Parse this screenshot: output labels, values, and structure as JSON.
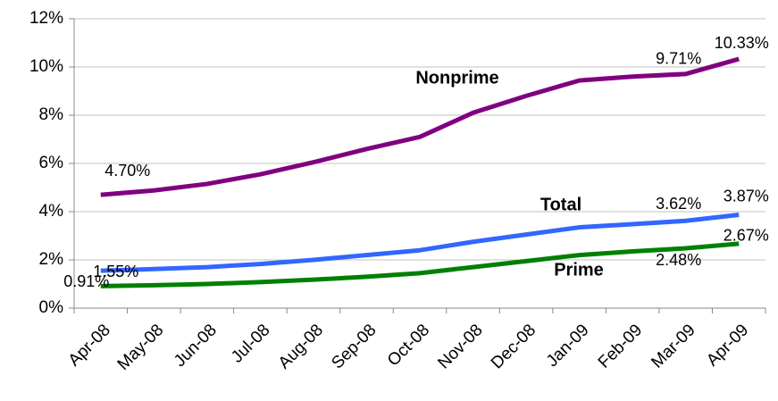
{
  "chart_data": {
    "type": "line",
    "categories": [
      "Apr-08",
      "May-08",
      "Jun-08",
      "Jul-08",
      "Aug-08",
      "Sep-08",
      "Oct-08",
      "Nov-08",
      "Dec-08",
      "Jan-09",
      "Feb-09",
      "Mar-09",
      "Apr-09"
    ],
    "series": [
      {
        "name": "Nonprime",
        "color": "#800080",
        "values": [
          4.7,
          4.88,
          5.15,
          5.55,
          6.05,
          6.6,
          7.1,
          8.1,
          8.8,
          9.44,
          9.6,
          9.71,
          10.33
        ],
        "value_labels": [
          "4.70%",
          null,
          null,
          null,
          null,
          null,
          null,
          null,
          null,
          null,
          null,
          "9.71%",
          "10.33%"
        ]
      },
      {
        "name": "Total",
        "color": "#3366ff",
        "values": [
          1.55,
          1.62,
          1.7,
          1.83,
          2.0,
          2.2,
          2.4,
          2.75,
          3.05,
          3.35,
          3.48,
          3.62,
          3.87
        ],
        "value_labels": [
          "1.55%",
          null,
          null,
          null,
          null,
          null,
          null,
          null,
          null,
          null,
          null,
          "3.62%",
          "3.87%"
        ]
      },
      {
        "name": "Prime",
        "color": "#008000",
        "values": [
          0.91,
          0.95,
          1.0,
          1.08,
          1.18,
          1.3,
          1.45,
          1.7,
          1.95,
          2.2,
          2.35,
          2.48,
          2.67
        ],
        "value_labels": [
          "0.91%",
          null,
          null,
          null,
          null,
          null,
          null,
          null,
          null,
          null,
          null,
          "2.48%",
          "2.67%"
        ]
      }
    ],
    "ylim": [
      0,
      12
    ],
    "yticks": [
      {
        "value": 0,
        "label": "0%"
      },
      {
        "value": 2,
        "label": "2%"
      },
      {
        "value": 4,
        "label": "4%"
      },
      {
        "value": 6,
        "label": "6%"
      },
      {
        "value": 8,
        "label": "8%"
      },
      {
        "value": 10,
        "label": "10%"
      },
      {
        "value": 12,
        "label": "12%"
      }
    ],
    "grid": true
  }
}
